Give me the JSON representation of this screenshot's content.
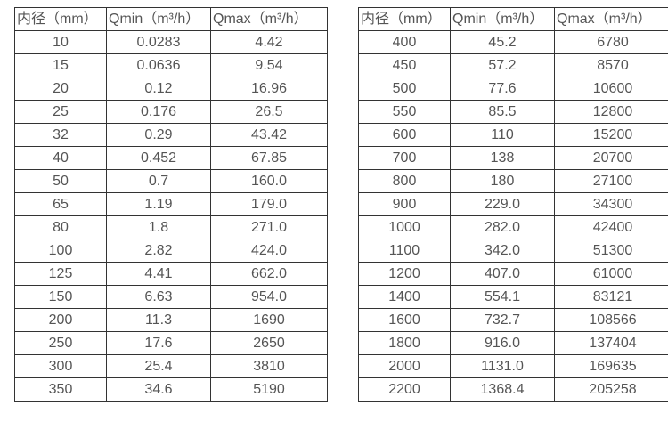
{
  "colors": {
    "background": "#ffffff",
    "table_border": "#333333",
    "text": "#555555"
  },
  "tables": [
    {
      "name": "flow-table-small-diameters",
      "headers": [
        "内径（mm）",
        "Qmin（m³/h）",
        "Qmax（m³/h）"
      ],
      "rows": [
        [
          "10",
          "0.0283",
          "4.42"
        ],
        [
          "15",
          "0.0636",
          "9.54"
        ],
        [
          "20",
          "0.12",
          "16.96"
        ],
        [
          "25",
          "0.176",
          "26.5"
        ],
        [
          "32",
          "0.29",
          "43.42"
        ],
        [
          "40",
          "0.452",
          "67.85"
        ],
        [
          "50",
          "0.7",
          "160.0"
        ],
        [
          "65",
          "1.19",
          "179.0"
        ],
        [
          "80",
          "1.8",
          "271.0"
        ],
        [
          "100",
          "2.82",
          "424.0"
        ],
        [
          "125",
          "4.41",
          "662.0"
        ],
        [
          "150",
          "6.63",
          "954.0"
        ],
        [
          "200",
          "11.3",
          "1690"
        ],
        [
          "250",
          "17.6",
          "2650"
        ],
        [
          "300",
          "25.4",
          "3810"
        ],
        [
          "350",
          "34.6",
          "5190"
        ]
      ]
    },
    {
      "name": "flow-table-large-diameters",
      "headers": [
        "内径（mm）",
        "Qmin（m³/h）",
        "Qmax（m³/h）"
      ],
      "rows": [
        [
          "400",
          "45.2",
          "6780"
        ],
        [
          "450",
          "57.2",
          "8570"
        ],
        [
          "500",
          "77.6",
          "10600"
        ],
        [
          "550",
          "85.5",
          "12800"
        ],
        [
          "600",
          "110",
          "15200"
        ],
        [
          "700",
          "138",
          "20700"
        ],
        [
          "800",
          "180",
          "27100"
        ],
        [
          "900",
          "229.0",
          "34300"
        ],
        [
          "1000",
          "282.0",
          "42400"
        ],
        [
          "1100",
          "342.0",
          "51300"
        ],
        [
          "1200",
          "407.0",
          "61000"
        ],
        [
          "1400",
          "554.1",
          "83121"
        ],
        [
          "1600",
          "732.7",
          "108566"
        ],
        [
          "1800",
          "916.0",
          "137404"
        ],
        [
          "2000",
          "1131.0",
          "169635"
        ],
        [
          "2200",
          "1368.4",
          "205258"
        ]
      ]
    }
  ]
}
